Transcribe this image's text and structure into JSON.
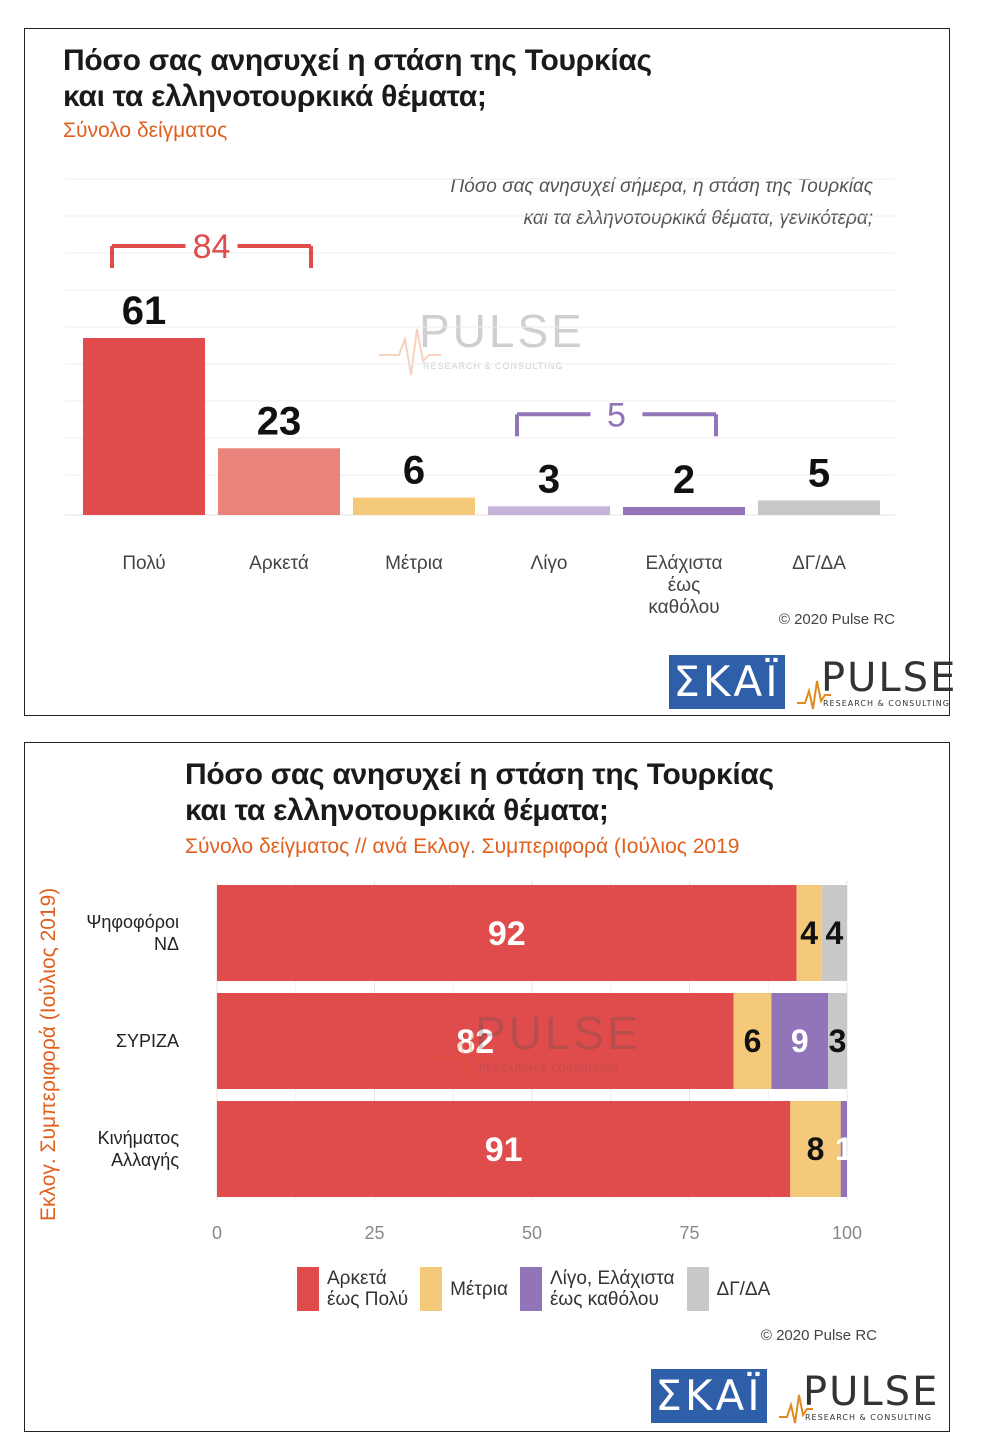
{
  "panel1": {
    "title_line1": "Πόσο σας ανησυχεί η στάση της Τουρκίας",
    "title_line2": "και τα ελληνοτουρκικά θέματα;",
    "subtitle": "Σύνολο δείγματος",
    "question_line1": "Πόσο σας ανησυχεί σήμερα, η στάση της Τουρκίας",
    "question_line2": "και τα ελληνοτουρκικά θέματα, γενικότερα;",
    "copyright": "© 2020 Pulse RC"
  },
  "panel2": {
    "title_line1": "Πόσο σας ανησυχεί η στάση της Τουρκίας",
    "title_line2": "και τα ελληνοτουρκικά θέματα;",
    "subtitle": "Σύνολο δείγματος // ανά Εκλογ. Συμπεριφορά (Ιούλιος 2019",
    "rotated_label": "Εκλογ. Συμπεριφορά (Ιούλιος 2019)",
    "copyright": "© 2020 Pulse RC"
  },
  "logos": {
    "skai": "ΣΚΑΪ",
    "pulse": "PULSE",
    "pulse_tagline": "RESEARCH & CONSULTING"
  },
  "chart_data": [
    {
      "type": "bar",
      "categories": [
        "Πολύ",
        "Αρκετά",
        "Μέτρια",
        "Λίγο",
        "Ελάχιστα\nέως\nκαθόλου",
        "ΔΓ/ΔΑ"
      ],
      "values": [
        61,
        23,
        6,
        3,
        2,
        5
      ],
      "colors": [
        "#e04b4b",
        "#e8847a",
        "#f5c97a",
        "#c5b3da",
        "#9274b8",
        "#c8c8c8"
      ],
      "brackets": [
        {
          "label": "84",
          "from": 0,
          "to": 1,
          "color": "#e04b4b"
        },
        {
          "label": "5",
          "from": 3,
          "to": 4,
          "color": "#9274b8"
        }
      ],
      "ylim": [
        0,
        70
      ],
      "grid": true
    },
    {
      "type": "bar",
      "orientation": "horizontal",
      "stacked": true,
      "categories": [
        "Ψηφοφόροι\nΝΔ",
        "ΣΥΡΙΖΑ",
        "Κινήματος\nΑλλαγής"
      ],
      "series": [
        {
          "name": "Αρκετά\nέως Πολύ",
          "color": "#e04b4b",
          "values": [
            92,
            82,
            91
          ],
          "labels": [
            "92",
            "82",
            "91"
          ]
        },
        {
          "name": "Μέτρια",
          "color": "#f5c97a",
          "values": [
            4,
            6,
            8
          ],
          "labels": [
            "4",
            "6",
            "8"
          ]
        },
        {
          "name": "Λίγο, Ελάχιστα\nέως καθόλου",
          "color": "#9274b8",
          "values": [
            0,
            9,
            1
          ],
          "labels": [
            "",
            "9",
            "1"
          ]
        },
        {
          "name": "ΔΓ/ΔΑ",
          "color": "#c8c8c8",
          "values": [
            4,
            3,
            0
          ],
          "labels": [
            "4",
            "3",
            ""
          ]
        }
      ],
      "xlim": [
        0,
        100
      ],
      "xticks": [
        "0",
        "25",
        "50",
        "75",
        "100"
      ],
      "grid": true,
      "legend": "bottom"
    }
  ]
}
